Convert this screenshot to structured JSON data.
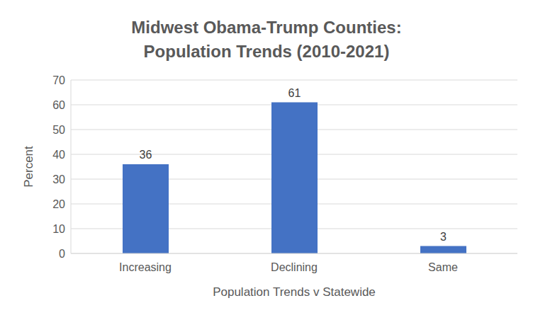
{
  "chart_data": {
    "type": "bar",
    "title": "Midwest Obama-Trump Counties:\nPopulation Trends (2010-2021)",
    "x_label": "Population Trends v Statewide",
    "y_label": "Percent",
    "categories": [
      "Increasing",
      "Declining",
      "Same"
    ],
    "values": [
      36,
      61,
      3
    ],
    "color": "#4472c4",
    "ylim": [
      0,
      70
    ],
    "yticks": [
      0,
      10,
      20,
      30,
      40,
      50,
      60,
      70
    ],
    "grid": true,
    "data_labels": true
  }
}
